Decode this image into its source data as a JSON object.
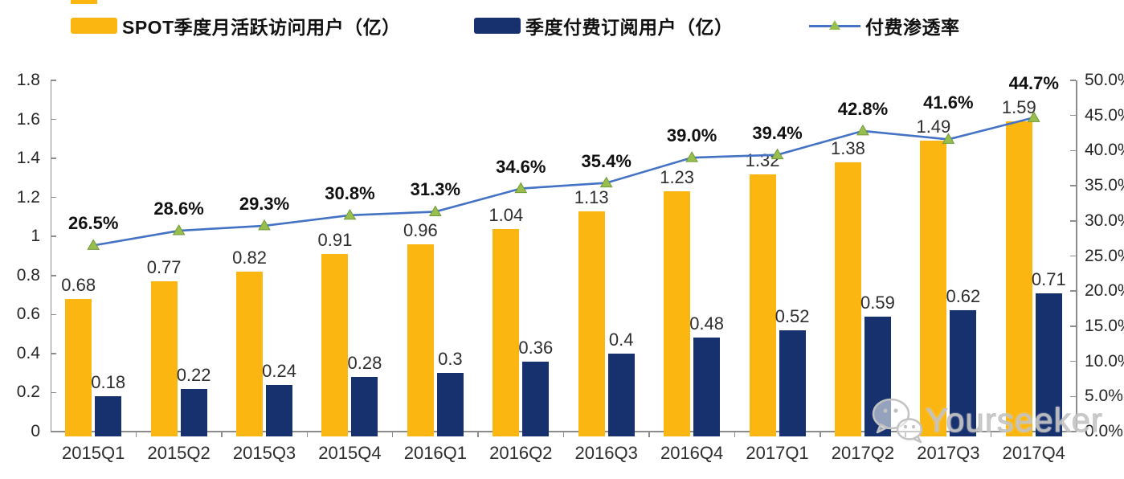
{
  "legend": {
    "items": [
      {
        "label": "SPOT季度月活跃访问用户（亿）",
        "swatch": "bar",
        "color": "#FBB612"
      },
      {
        "label": "季度付费订阅用户（亿）",
        "swatch": "bar",
        "color": "#16316E"
      },
      {
        "label": "付费渗透率",
        "swatch": "line-triangle-marker",
        "line_color": "#4472C4",
        "marker_color": "#97BE4F"
      }
    ]
  },
  "chart_data": {
    "type": "bar",
    "subtype": "grouped-bars-with-line-dual-axis",
    "title": "",
    "grid": "off",
    "legend_position": "top",
    "categories": [
      "2015Q1",
      "2015Q2",
      "2015Q3",
      "2015Q4",
      "2016Q1",
      "2016Q2",
      "2016Q3",
      "2016Q4",
      "2017Q1",
      "2017Q2",
      "2017Q3",
      "2017Q4"
    ],
    "series": [
      {
        "name": "SPOT季度月活跃访问用户（亿）",
        "type": "bar",
        "axis": "left",
        "color": "#FBB612",
        "values": [
          0.68,
          0.77,
          0.82,
          0.91,
          0.96,
          1.04,
          1.13,
          1.23,
          1.32,
          1.38,
          1.49,
          1.59
        ],
        "labels": [
          "0.68",
          "0.77",
          "0.82",
          "0.91",
          "0.96",
          "1.04",
          "1.13",
          "1.23",
          "1.32",
          "1.38",
          "1.49",
          "1.59"
        ]
      },
      {
        "name": "季度付费订阅用户（亿）",
        "type": "bar",
        "axis": "left",
        "color": "#16316E",
        "values": [
          0.18,
          0.22,
          0.24,
          0.28,
          0.3,
          0.36,
          0.4,
          0.48,
          0.52,
          0.59,
          0.62,
          0.71
        ],
        "labels": [
          "0.18",
          "0.22",
          "0.24",
          "0.28",
          "0.3",
          "0.36",
          "0.4",
          "0.48",
          "0.52",
          "0.59",
          "0.62",
          "0.71"
        ]
      },
      {
        "name": "付费渗透率",
        "type": "line",
        "axis": "right",
        "color": "#4472C4",
        "marker": "triangle",
        "marker_color": "#97BE4F",
        "values": [
          26.5,
          28.6,
          29.3,
          30.8,
          31.3,
          34.6,
          35.4,
          39.0,
          39.4,
          42.8,
          41.6,
          44.7
        ],
        "labels": [
          "26.5%",
          "28.6%",
          "29.3%",
          "30.8%",
          "31.3%",
          "34.6%",
          "35.4%",
          "39.0%",
          "39.4%",
          "42.8%",
          "41.6%",
          "44.7%"
        ]
      }
    ],
    "left_axis": {
      "min": 0,
      "max": 1.8,
      "step": 0.2,
      "tick_labels": [
        "0",
        "0.2",
        "0.4",
        "0.6",
        "0.8",
        "1",
        "1.2",
        "1.4",
        "1.6",
        "1.8"
      ]
    },
    "right_axis": {
      "min": 0,
      "max": 50,
      "step": 5,
      "tick_labels": [
        "0.0%",
        "5.0%",
        "10.0%",
        "15.0%",
        "20.0%",
        "25.0%",
        "30.0%",
        "35.0%",
        "40.0%",
        "45.0%",
        "50.0%"
      ]
    }
  },
  "watermark": {
    "text": "Yourseeker",
    "icon": "wechat-icon"
  }
}
